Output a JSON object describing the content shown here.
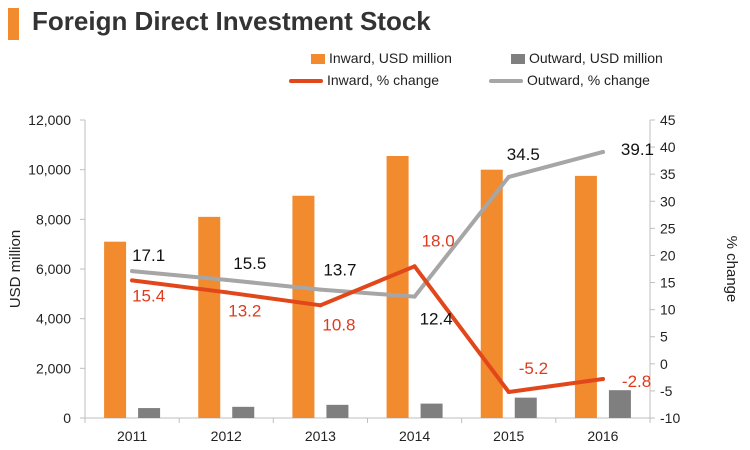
{
  "title": "Foreign Direct Investment Stock",
  "colors": {
    "inward_bar": "#f28a2e",
    "outward_bar": "#7f7f7f",
    "inward_line": "#e1471b",
    "outward_line": "#a6a6a6",
    "title_accent": "#f28a2e",
    "inward_label": "#e03a1e",
    "outward_label": "#111111"
  },
  "chart_data": {
    "type": "bar",
    "title": "Foreign Direct Investment Stock",
    "categories": [
      "2011",
      "2012",
      "2013",
      "2014",
      "2015",
      "2016"
    ],
    "series": [
      {
        "name": "Inward, USD million",
        "type": "bar",
        "axis": "left",
        "values": [
          7100,
          8100,
          8950,
          10550,
          10000,
          9750
        ]
      },
      {
        "name": "Outward, USD million",
        "type": "bar",
        "axis": "left",
        "values": [
          400,
          450,
          530,
          580,
          820,
          1120
        ]
      },
      {
        "name": "Inward, % change",
        "type": "line",
        "axis": "right",
        "values": [
          15.4,
          13.2,
          10.8,
          18.0,
          -5.2,
          -2.8
        ],
        "labels": [
          "15.4",
          "13.2",
          "10.8",
          "18.0",
          "-5.2",
          "-2.8"
        ]
      },
      {
        "name": "Outward, % change",
        "type": "line",
        "axis": "right",
        "values": [
          17.1,
          15.5,
          13.7,
          12.4,
          34.5,
          39.1
        ],
        "labels": [
          "17.1",
          "15.5",
          "13.7",
          "12.4",
          "34.5",
          "39.1"
        ]
      }
    ],
    "ylabel": "USD million",
    "y2label": "% change",
    "ylim": [
      0,
      12000
    ],
    "y2lim": [
      -10,
      45
    ],
    "yticks": [
      "0",
      "2,000",
      "4,000",
      "6,000",
      "8,000",
      "10,000",
      "12,000"
    ],
    "y2ticks": [
      "-10",
      "-5",
      "0",
      "5",
      "10",
      "15",
      "20",
      "25",
      "30",
      "35",
      "40",
      "45"
    ]
  }
}
